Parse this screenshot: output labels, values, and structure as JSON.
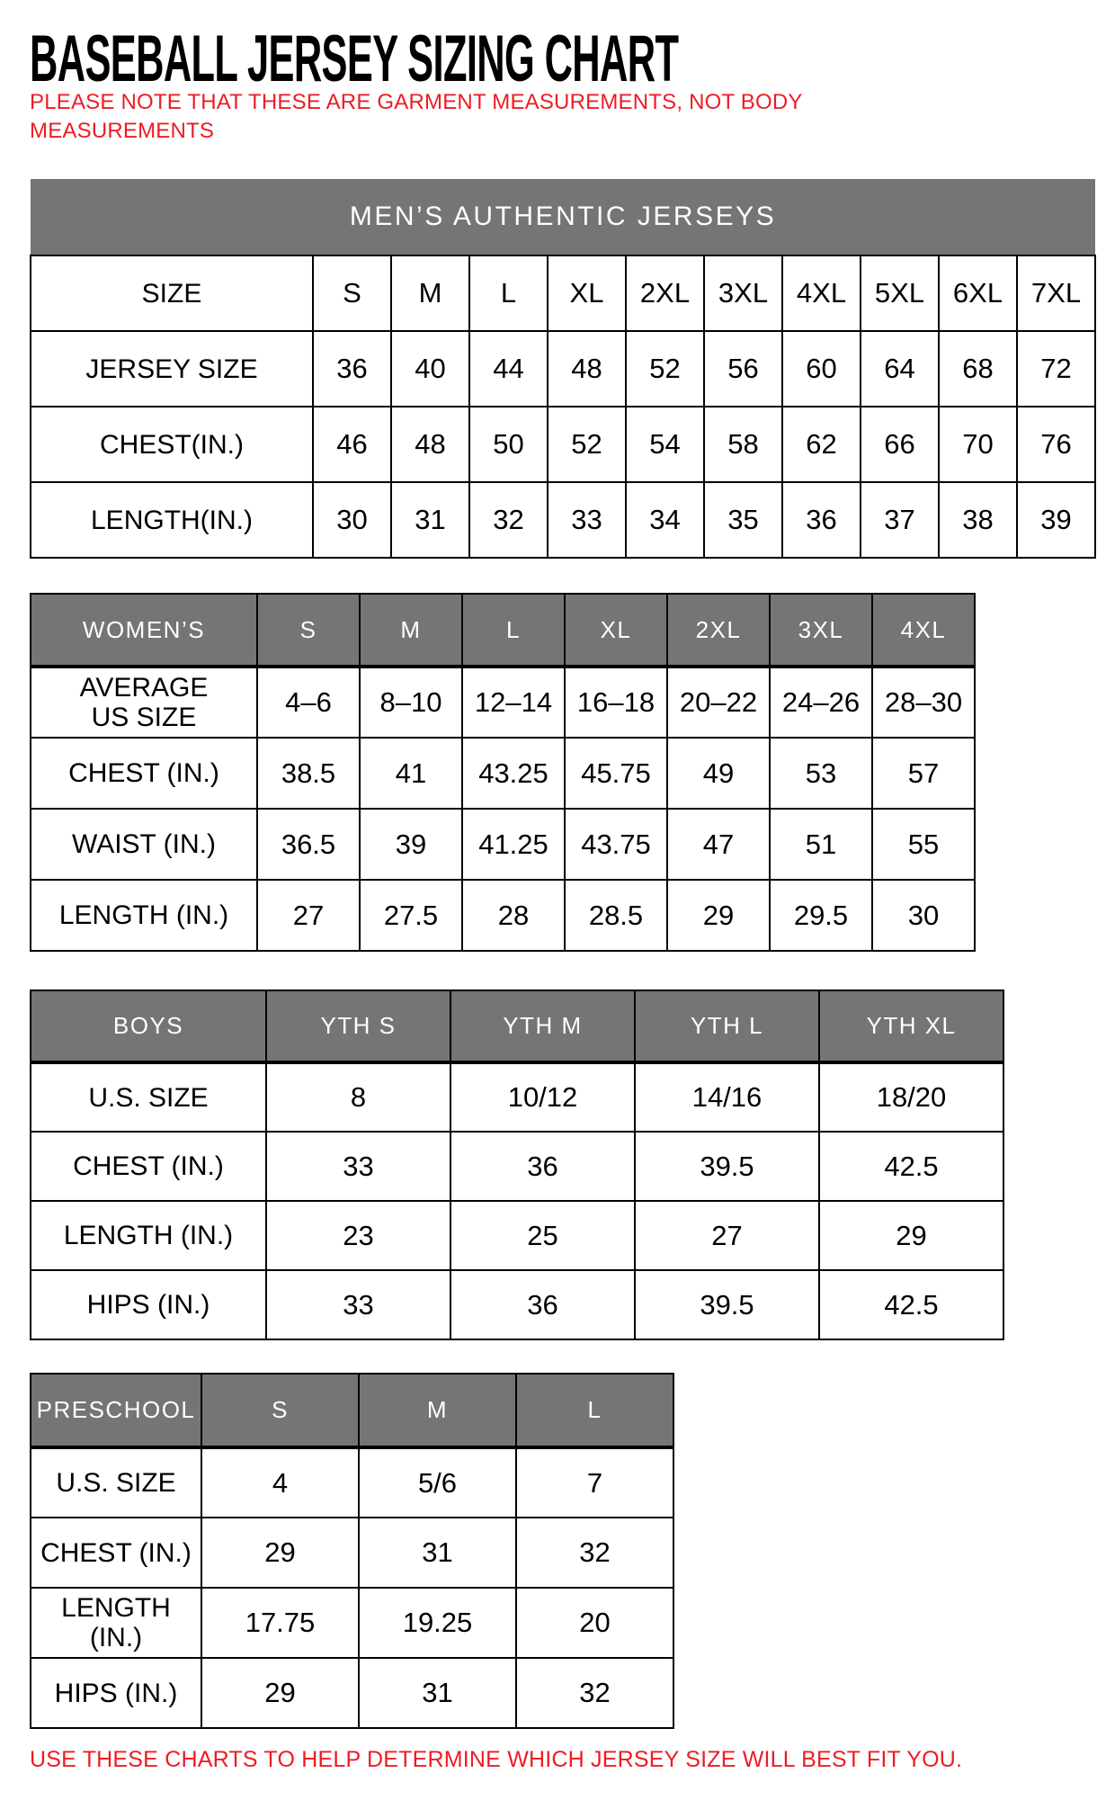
{
  "page": {
    "title": "BASEBALL JERSEY SIZING CHART",
    "note": "PLEASE NOTE THAT THESE ARE GARMENT MEASUREMENTS, NOT BODY\nMEASUREMENTS",
    "footer": "USE THESE CHARTS TO HELP DETERMINE WHICH JERSEY SIZE WILL BEST FIT YOU.",
    "colors": {
      "header_gray": "#757575",
      "accent_red": "#ed1c24",
      "border_black": "#000000"
    }
  },
  "tables": {
    "mens": {
      "banner": "MEN’S AUTHENTIC JERSEYS",
      "rows": [
        {
          "label": "SIZE",
          "values": [
            "S",
            "M",
            "L",
            "XL",
            "2XL",
            "3XL",
            "4XL",
            "5XL",
            "6XL",
            "7XL"
          ]
        },
        {
          "label": "JERSEY SIZE",
          "values": [
            "36",
            "40",
            "44",
            "48",
            "52",
            "56",
            "60",
            "64",
            "68",
            "72"
          ]
        },
        {
          "label": "CHEST(IN.)",
          "values": [
            "46",
            "48",
            "50",
            "52",
            "54",
            "58",
            "62",
            "66",
            "70",
            "76"
          ]
        },
        {
          "label": "LENGTH(IN.)",
          "values": [
            "30",
            "31",
            "32",
            "33",
            "34",
            "35",
            "36",
            "37",
            "38",
            "39"
          ]
        }
      ]
    },
    "womens": {
      "header_label": "WOMEN’S",
      "header_sizes": [
        "S",
        "M",
        "L",
        "XL",
        "2XL",
        "3XL",
        "4XL"
      ],
      "rows": [
        {
          "label": "AVERAGE\nUS SIZE",
          "values": [
            "4–6",
            "8–10",
            "12–14",
            "16–18",
            "20–22",
            "24–26",
            "28–30"
          ]
        },
        {
          "label": "CHEST (IN.)",
          "values": [
            "38.5",
            "41",
            "43.25",
            "45.75",
            "49",
            "53",
            "57"
          ]
        },
        {
          "label": "WAIST (IN.)",
          "values": [
            "36.5",
            "39",
            "41.25",
            "43.75",
            "47",
            "51",
            "55"
          ]
        },
        {
          "label": "LENGTH (IN.)",
          "values": [
            "27",
            "27.5",
            "28",
            "28.5",
            "29",
            "29.5",
            "30"
          ]
        }
      ]
    },
    "boys": {
      "header_label": "BOYS",
      "header_sizes": [
        "YTH S",
        "YTH M",
        "YTH L",
        "YTH XL"
      ],
      "rows": [
        {
          "label": "U.S. SIZE",
          "values": [
            "8",
            "10/12",
            "14/16",
            "18/20"
          ]
        },
        {
          "label": "CHEST (IN.)",
          "values": [
            "33",
            "36",
            "39.5",
            "42.5"
          ]
        },
        {
          "label": "LENGTH (IN.)",
          "values": [
            "23",
            "25",
            "27",
            "29"
          ]
        },
        {
          "label": "HIPS (IN.)",
          "values": [
            "33",
            "36",
            "39.5",
            "42.5"
          ]
        }
      ]
    },
    "preschool": {
      "header_label": "PRESCHOOL",
      "header_sizes": [
        "S",
        "M",
        "L"
      ],
      "rows": [
        {
          "label": "U.S. SIZE",
          "values": [
            "4",
            "5/6",
            "7"
          ]
        },
        {
          "label": "CHEST (IN.)",
          "values": [
            "29",
            "31",
            "32"
          ]
        },
        {
          "label": "LENGTH (IN.)",
          "values": [
            "17.75",
            "19.25",
            "20"
          ]
        },
        {
          "label": "HIPS (IN.)",
          "values": [
            "29",
            "31",
            "32"
          ]
        }
      ]
    }
  }
}
